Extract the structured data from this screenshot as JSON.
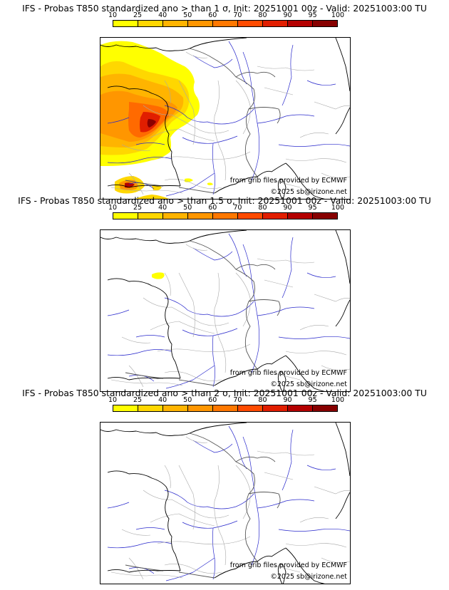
{
  "colorbar": {
    "ticks": [
      "10",
      "25",
      "40",
      "50",
      "60",
      "70",
      "80",
      "90",
      "95",
      "100"
    ],
    "colors": [
      "#ffff00",
      "#ffd700",
      "#ffb400",
      "#ff9600",
      "#ff7800",
      "#ff4b00",
      "#e11e00",
      "#b40000",
      "#870000",
      "#500000"
    ]
  },
  "panels": [
    {
      "title": "IFS - Probas T850  standardized ano > than 1 σ, Init: 20251001 00z - Valid: 20251003:00 TU",
      "credit_source": "from grib files provided by ECMWF",
      "credit_copyright": "©2025 sb@irizone.net"
    },
    {
      "title": "IFS - Probas T850  standardized ano > than 1.5 σ, Init: 20251001 00z - Valid: 20251003:00 TU",
      "credit_source": "from grib files provided by ECMWF",
      "credit_copyright": "©2025 sb@irizone.net"
    },
    {
      "title": "IFS - Probas T850  standardized ano > than 2 σ, Init: 20251001 00z - Valid: 20251003:00 TU",
      "credit_source": "from grib files provided by ECMWF",
      "credit_copyright": "©2025 sb@irizone.net"
    }
  ],
  "colors": {
    "coastline": "#000000",
    "borders": "#a8a8a8",
    "rivers": "#2222cc"
  }
}
